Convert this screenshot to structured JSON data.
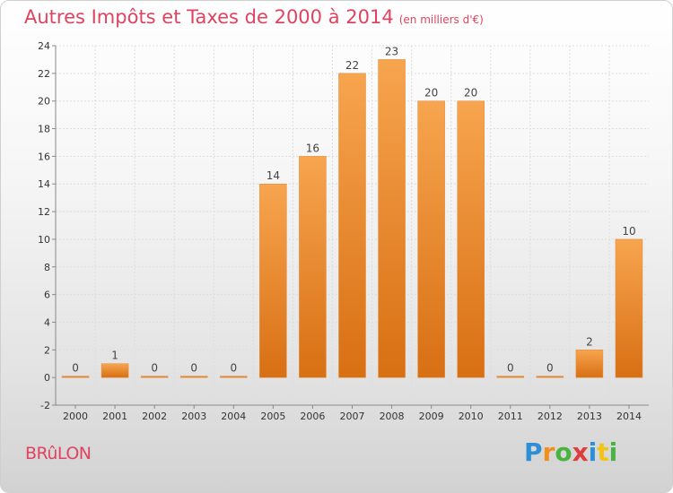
{
  "title": "Autres Impôts et Taxes de 2000 à 2014",
  "unit": "(en milliers d'€)",
  "town": "BRûLON",
  "brand": "Proxiti",
  "colors": {
    "title": "#e0435f",
    "bar_light": "#f7a54f",
    "bar_dark": "#d86f13"
  },
  "chart_data": {
    "type": "bar",
    "title": "Autres Impôts et Taxes de 2000 à 2014",
    "subtitle": "(en milliers d'€)",
    "xlabel": "",
    "ylabel": "",
    "categories": [
      "2000",
      "2001",
      "2002",
      "2003",
      "2004",
      "2005",
      "2006",
      "2007",
      "2008",
      "2009",
      "2010",
      "2011",
      "2012",
      "2013",
      "2014"
    ],
    "values": [
      0,
      1,
      0,
      0,
      0,
      14,
      16,
      22,
      23,
      20,
      20,
      0,
      0,
      2,
      10
    ],
    "data_labels": [
      "0",
      "1",
      "0",
      "0",
      "0",
      "14",
      "16",
      "22",
      "23",
      "20",
      "20",
      "0",
      "0",
      "2",
      "10"
    ],
    "ylim": [
      -2,
      24
    ],
    "yticks": [
      -2,
      0,
      2,
      4,
      6,
      8,
      10,
      12,
      14,
      16,
      18,
      20,
      22,
      24
    ],
    "grid": true,
    "legend": "none"
  }
}
